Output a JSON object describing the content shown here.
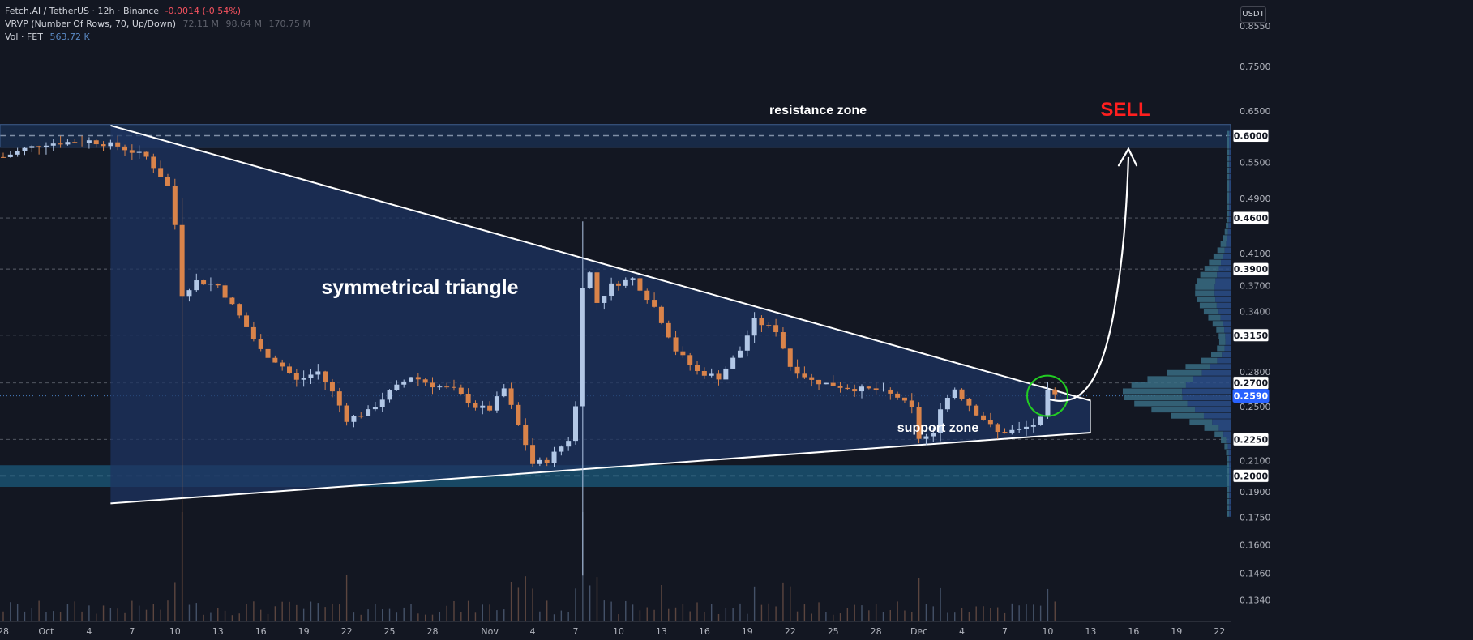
{
  "legend": {
    "symbol": "Fetch.AI / TetherUS · 12h · Binance",
    "change": "-0.0014 (-0.54%)",
    "vrvp_label": "VRVP (Number Of Rows, 70, Up/Down)",
    "vrvp_values": [
      "72.11 M",
      "98.64 M",
      "170.75 M"
    ],
    "vol_label": "Vol · FET",
    "vol_value": "563.72 K"
  },
  "currency": "USDT",
  "colors": {
    "background": "#131722",
    "up_candle": "#b2c7e6",
    "down_candle": "#d9834a",
    "triangle_fill": "#1d3462",
    "resistance_zone": "#1e3a66",
    "support_zone": "#1a5576",
    "sell_text": "#ff1f1f",
    "circle": "#22cc22",
    "price_line": "#4a7fc1"
  },
  "chart_data": {
    "type": "candlestick",
    "title": "",
    "price_axis": {
      "ticks": [
        "0.8550",
        "0.7500",
        "0.6500",
        "0.5500",
        "0.4900",
        "0.4100",
        "0.3700",
        "0.3400",
        "0.2800",
        "0.2500",
        "0.2100",
        "0.1900",
        "0.1750",
        "0.1600",
        "0.1460",
        "0.1340"
      ],
      "scale": "log",
      "range": [
        0.125,
        0.93
      ]
    },
    "price_labels": [
      {
        "value": 0.6,
        "text": "0.6000"
      },
      {
        "value": 0.46,
        "text": "0.4600"
      },
      {
        "value": 0.39,
        "text": "0.3900"
      },
      {
        "value": 0.315,
        "text": "0.3150"
      },
      {
        "value": 0.27,
        "text": "0.2700"
      },
      {
        "value": 0.259,
        "text": "0.2590",
        "current": true
      },
      {
        "value": 0.225,
        "text": "0.2250"
      },
      {
        "value": 0.2,
        "text": "0.2000"
      }
    ],
    "dashed_levels": [
      0.6,
      0.46,
      0.39,
      0.315,
      0.27,
      0.225,
      0.2
    ],
    "time_axis": {
      "labels": [
        {
          "text": "28",
          "date": "2023-09-28"
        },
        {
          "text": "Oct",
          "date": "2023-10-01"
        },
        {
          "text": "4",
          "date": "2023-10-04"
        },
        {
          "text": "7",
          "date": "2023-10-07"
        },
        {
          "text": "10",
          "date": "2023-10-10"
        },
        {
          "text": "13",
          "date": "2023-10-13"
        },
        {
          "text": "16",
          "date": "2023-10-16"
        },
        {
          "text": "19",
          "date": "2023-10-19"
        },
        {
          "text": "22",
          "date": "2023-10-22"
        },
        {
          "text": "25",
          "date": "2023-10-25"
        },
        {
          "text": "28",
          "date": "2023-10-28"
        },
        {
          "text": "Nov",
          "date": "2023-11-01"
        },
        {
          "text": "4",
          "date": "2023-11-04"
        },
        {
          "text": "7",
          "date": "2023-11-07"
        },
        {
          "text": "10",
          "date": "2023-11-10"
        },
        {
          "text": "13",
          "date": "2023-11-13"
        },
        {
          "text": "16",
          "date": "2023-11-16"
        },
        {
          "text": "19",
          "date": "2023-11-19"
        },
        {
          "text": "22",
          "date": "2023-11-22"
        },
        {
          "text": "25",
          "date": "2023-11-25"
        },
        {
          "text": "28",
          "date": "2023-11-28"
        },
        {
          "text": "Dec",
          "date": "2023-12-01"
        },
        {
          "text": "4",
          "date": "2023-12-04"
        },
        {
          "text": "7",
          "date": "2023-12-07"
        },
        {
          "text": "10",
          "date": "2023-12-10"
        },
        {
          "text": "13",
          "date": "2023-12-13"
        },
        {
          "text": "16",
          "date": "2023-12-16"
        },
        {
          "text": "19",
          "date": "2023-12-19"
        },
        {
          "text": "22",
          "date": "2023-12-22"
        }
      ]
    },
    "candle_path": [
      [
        "2023-09-28T00:00",
        0.56
      ],
      [
        "2023-09-29T12:00",
        0.575
      ],
      [
        "2023-10-01T00:00",
        0.585
      ],
      [
        "2023-10-04T00:00",
        0.59
      ],
      [
        "2023-10-06T00:00",
        0.58
      ],
      [
        "2023-10-08T00:00",
        0.56
      ],
      [
        "2023-10-09T12:00",
        0.51
      ],
      [
        "2023-10-10T00:00",
        0.45
      ],
      [
        "2023-10-10T12:00",
        0.36
      ],
      [
        "2023-10-11T12:00",
        0.375
      ],
      [
        "2023-10-13T00:00",
        0.37
      ],
      [
        "2023-10-14T12:00",
        0.335
      ],
      [
        "2023-10-16T00:00",
        0.3
      ],
      [
        "2023-10-17T12:00",
        0.285
      ],
      [
        "2023-10-18T12:00",
        0.272
      ],
      [
        "2023-10-20T00:00",
        0.28
      ],
      [
        "2023-10-21T00:00",
        0.262
      ],
      [
        "2023-10-22T00:00",
        0.24
      ],
      [
        "2023-10-23T12:00",
        0.246
      ],
      [
        "2023-10-25T00:00",
        0.262
      ],
      [
        "2023-10-26T12:00",
        0.276
      ],
      [
        "2023-10-28T00:00",
        0.268
      ],
      [
        "2023-10-29T12:00",
        0.264
      ],
      [
        "2023-10-31T00:00",
        0.25
      ],
      [
        "2023-11-01T00:00",
        0.248
      ],
      [
        "2023-11-02T00:00",
        0.265
      ],
      [
        "2023-11-03T00:00",
        0.235
      ],
      [
        "2023-11-04T00:00",
        0.208
      ],
      [
        "2023-11-05T00:00",
        0.21
      ],
      [
        "2023-11-06T12:00",
        0.225
      ],
      [
        "2023-11-07T00:00",
        0.25
      ],
      [
        "2023-11-07T12:00",
        0.37
      ],
      [
        "2023-11-08T00:00",
        0.385
      ],
      [
        "2023-11-08T12:00",
        0.35
      ],
      [
        "2023-11-09T12:00",
        0.37
      ],
      [
        "2023-11-11T00:00",
        0.378
      ],
      [
        "2023-11-12T12:00",
        0.345
      ],
      [
        "2023-11-14T00:00",
        0.3
      ],
      [
        "2023-11-15T12:00",
        0.28
      ],
      [
        "2023-11-17T00:00",
        0.275
      ],
      [
        "2023-11-18T12:00",
        0.3
      ],
      [
        "2023-11-19T12:00",
        0.33
      ],
      [
        "2023-11-21T00:00",
        0.32
      ],
      [
        "2023-11-22T00:00",
        0.285
      ],
      [
        "2023-11-23T12:00",
        0.272
      ],
      [
        "2023-11-25T00:00",
        0.268
      ],
      [
        "2023-11-26T12:00",
        0.265
      ],
      [
        "2023-11-28T00:00",
        0.264
      ],
      [
        "2023-11-29T12:00",
        0.258
      ],
      [
        "2023-11-30T12:00",
        0.248
      ],
      [
        "2023-12-01T00:00",
        0.226
      ],
      [
        "2023-12-02T00:00",
        0.228
      ],
      [
        "2023-12-02T12:00",
        0.25
      ],
      [
        "2023-12-03T12:00",
        0.265
      ],
      [
        "2023-12-05T00:00",
        0.245
      ],
      [
        "2023-12-06T12:00",
        0.23
      ],
      [
        "2023-12-08T00:00",
        0.232
      ],
      [
        "2023-12-09T00:00",
        0.236
      ],
      [
        "2023-12-09T12:00",
        0.24
      ],
      [
        "2023-12-10T00:00",
        0.262
      ],
      [
        "2023-12-10T12:00",
        0.259
      ]
    ],
    "spike_candles": [
      {
        "t": "2023-10-10T12:00",
        "high": 0.49,
        "low": 0.125,
        "dir": "down"
      },
      {
        "t": "2023-11-07T12:00",
        "high": 0.455,
        "low": 0.145,
        "dir": "up"
      }
    ],
    "annotations": {
      "resistance_zone": {
        "label": "resistance zone",
        "low": 0.578,
        "high": 0.622
      },
      "support_zone": {
        "label": "support zone",
        "low": 0.193,
        "high": 0.207
      },
      "triangle_label": "symmetrical triangle",
      "triangle": {
        "upper": [
          [
            "2023-10-05T12:00",
            0.62
          ],
          [
            "2023-12-13T00:00",
            0.255
          ]
        ],
        "lower": [
          [
            "2023-10-05T12:00",
            0.183
          ],
          [
            "2023-12-13T00:00",
            0.23
          ]
        ]
      },
      "sell_label": "SELL"
    }
  }
}
